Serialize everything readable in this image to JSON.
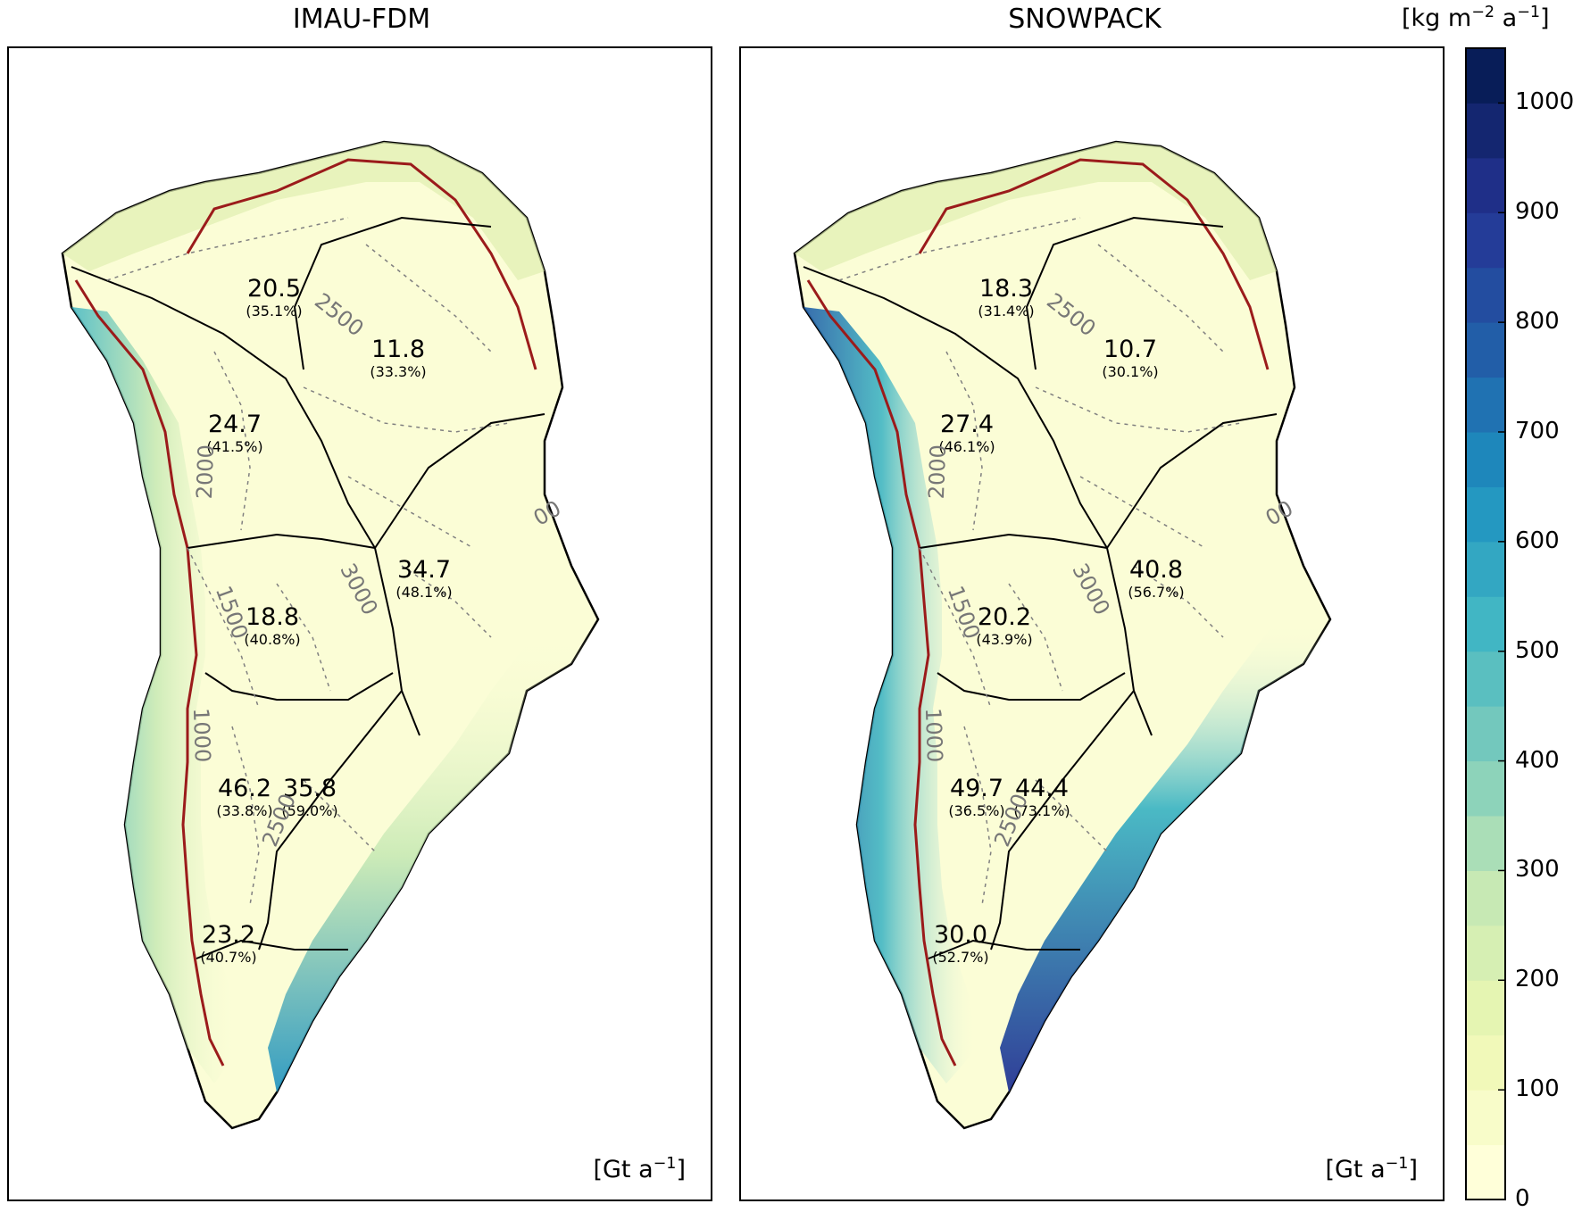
{
  "colors": {
    "outline": "#000000",
    "equilibrium_line": "#9b1b1b",
    "contour": "#808080",
    "contour_label": "#777777"
  },
  "panels": [
    {
      "title": "IMAU-FDM",
      "units_base": "[Gt a",
      "units_exp": "−1",
      "units_close": "]",
      "regions": [
        {
          "value": "20.5",
          "percent": "(35.1%)"
        },
        {
          "value": "11.8",
          "percent": "(33.3%)"
        },
        {
          "value": "24.7",
          "percent": "(41.5%)"
        },
        {
          "value": "34.7",
          "percent": "(48.1%)"
        },
        {
          "value": "18.8",
          "percent": "(40.8%)"
        },
        {
          "value": "46.2",
          "percent": "(33.8%)"
        },
        {
          "value": "35.8",
          "percent": "(59.0%)"
        },
        {
          "value": "23.2",
          "percent": "(40.7%)"
        }
      ],
      "contour_labels": [
        "2500",
        "2000",
        "3000",
        "1500",
        "1000",
        "2500",
        "00"
      ]
    },
    {
      "title": "SNOWPACK",
      "units_base": "[Gt a",
      "units_exp": "−1",
      "units_close": "]",
      "regions": [
        {
          "value": "18.3",
          "percent": "(31.4%)"
        },
        {
          "value": "10.7",
          "percent": "(30.1%)"
        },
        {
          "value": "27.4",
          "percent": "(46.1%)"
        },
        {
          "value": "40.8",
          "percent": "(56.7%)"
        },
        {
          "value": "20.2",
          "percent": "(43.9%)"
        },
        {
          "value": "49.7",
          "percent": "(36.5%)"
        },
        {
          "value": "44.4",
          "percent": "(73.1%)"
        },
        {
          "value": "30.0",
          "percent": "(52.7%)"
        }
      ],
      "contour_labels": [
        "2500",
        "2000",
        "3000",
        "1500",
        "1000",
        "2500",
        "00"
      ]
    }
  ],
  "colorbar": {
    "title_base": "[kg m",
    "title_exp1": "−2",
    "title_mid": " a",
    "title_exp2": "−1",
    "title_close": "]",
    "min": 0,
    "max": 1050,
    "ticks": [
      "0",
      "100",
      "200",
      "300",
      "400",
      "500",
      "600",
      "700",
      "800",
      "900",
      "1000"
    ],
    "tick_values": [
      0,
      100,
      200,
      300,
      400,
      500,
      600,
      700,
      800,
      900,
      1000
    ],
    "levels": 21,
    "stops": [
      "#ffffd9",
      "#edf8b1",
      "#c7e9b4",
      "#7fcdbb",
      "#41b6c4",
      "#1d91c0",
      "#225ea8",
      "#253494",
      "#081d58"
    ]
  }
}
